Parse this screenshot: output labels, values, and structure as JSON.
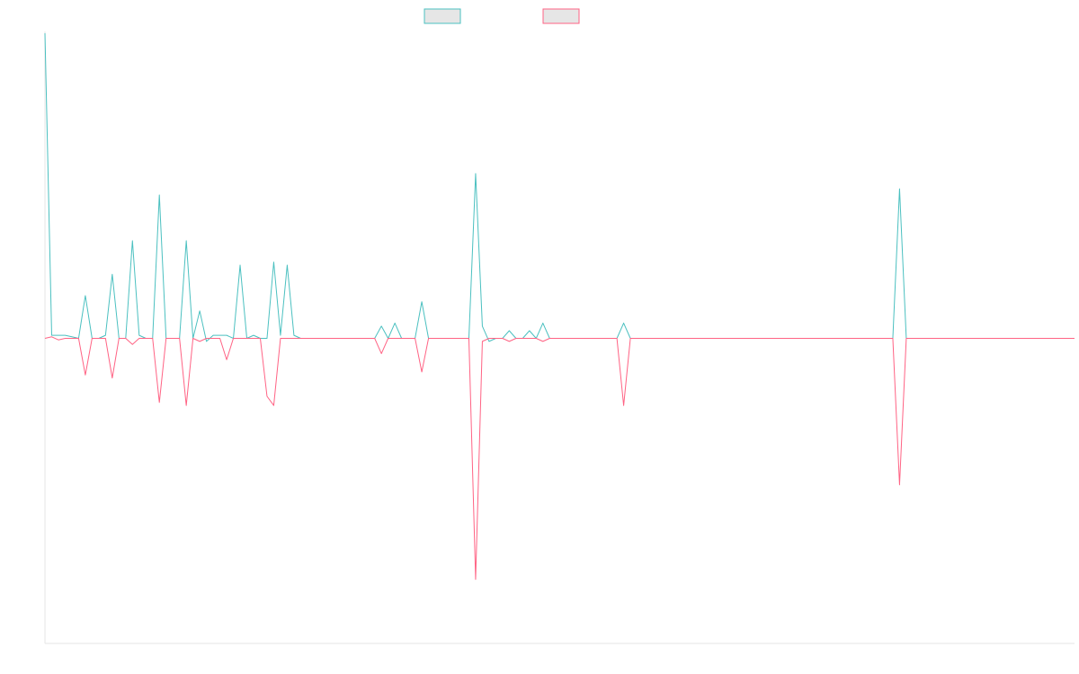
{
  "chart_data": {
    "type": "line",
    "title": "",
    "xlabel": "",
    "ylabel": "",
    "grid": false,
    "legend_position": "top-center",
    "ylim": [
      -1,
      1
    ],
    "x_count": 154,
    "series": [
      {
        "color": "#4bc0c0",
        "fill": "#e6e6e6",
        "spikes": [
          [
            0,
            1.0
          ],
          [
            1,
            0.01
          ],
          [
            2,
            0.01
          ],
          [
            3,
            0.01
          ],
          [
            4,
            0.005
          ],
          [
            6,
            0.14
          ],
          [
            9,
            0.01
          ],
          [
            10,
            0.21
          ],
          [
            13,
            0.32
          ],
          [
            14,
            0.01
          ],
          [
            17,
            0.47
          ],
          [
            21,
            0.32
          ],
          [
            23,
            0.09
          ],
          [
            24,
            -0.01
          ],
          [
            25,
            0.01
          ],
          [
            26,
            0.01
          ],
          [
            27,
            0.01
          ],
          [
            29,
            0.24
          ],
          [
            31,
            0.01
          ],
          [
            34,
            0.25
          ],
          [
            35,
            0.01
          ],
          [
            36,
            0.24
          ],
          [
            37,
            0.01
          ],
          [
            37,
            0.01
          ],
          [
            50,
            0.04
          ],
          [
            52,
            0.05
          ],
          [
            56,
            0.12
          ],
          [
            64,
            0.54
          ],
          [
            65,
            0.04
          ],
          [
            66,
            -0.01
          ],
          [
            69,
            0.025
          ],
          [
            72,
            0.025
          ],
          [
            74,
            0.05
          ],
          [
            86,
            0.05
          ],
          [
            127,
            0.49
          ]
        ]
      },
      {
        "color": "#ff6384",
        "fill": "#e6e6e6",
        "spikes": [
          [
            0,
            0.0
          ],
          [
            1,
            0.005
          ],
          [
            2,
            -0.005
          ],
          [
            6,
            -0.12
          ],
          [
            10,
            -0.13
          ],
          [
            13,
            -0.02
          ],
          [
            17,
            -0.21
          ],
          [
            21,
            -0.22
          ],
          [
            23,
            -0.01
          ],
          [
            25,
            0.0
          ],
          [
            27,
            -0.07
          ],
          [
            29,
            0.0
          ],
          [
            33,
            -0.19
          ],
          [
            34,
            0.0
          ],
          [
            34,
            -0.22
          ],
          [
            50,
            -0.05
          ],
          [
            56,
            -0.11
          ],
          [
            64,
            -0.79
          ],
          [
            65,
            -0.01
          ],
          [
            69,
            -0.01
          ],
          [
            74,
            -0.01
          ],
          [
            86,
            -0.22
          ],
          [
            127,
            -0.48
          ]
        ]
      }
    ]
  }
}
